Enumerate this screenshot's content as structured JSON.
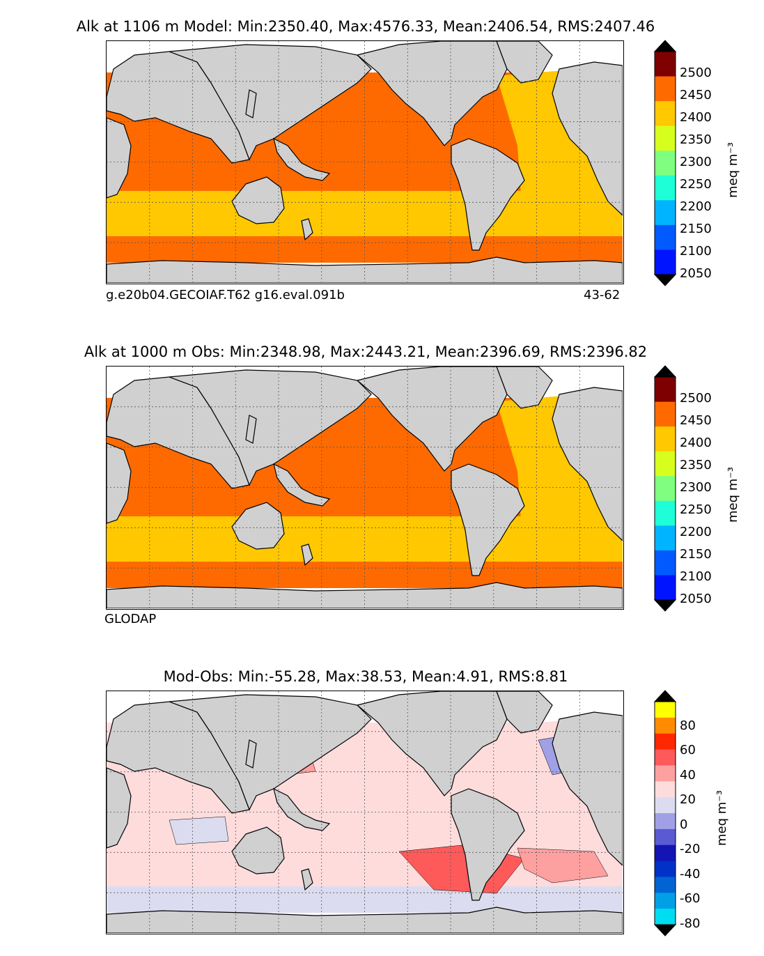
{
  "panels": [
    {
      "title": "Alk at 1106 m Model: Min:2350.40, Max:4576.33, Mean:2406.54, RMS:2407.46",
      "footnote_left": "g.e20b04.GECOIAF.T62 g16.eval.091b",
      "footnote_right": "43-62",
      "colorbar_unit": "meq m⁻³",
      "colorbar_ticks": [
        "2500",
        "2450",
        "2400",
        "2350",
        "2300",
        "2250",
        "2200",
        "2150",
        "2100",
        "2050"
      ],
      "colorbar_colors": [
        "#7f0000",
        "#ff1400",
        "#ff6a00",
        "#ffc800",
        "#d7ff1e",
        "#7fff7f",
        "#1effd7",
        "#00b4ff",
        "#005aff",
        "#0014ff",
        "#00007f"
      ],
      "map_fill": {
        "north": "#ff6a00",
        "south": "#ffc800",
        "atlantic": "#ffc800",
        "circumpolar": "#ff6a00"
      }
    },
    {
      "title": "Alk at 1000 m Obs: Min:2348.98, Max:2443.21, Mean:2396.69, RMS:2396.82",
      "footnote_left": "GLODAP",
      "footnote_right": "",
      "colorbar_unit": "meq m⁻³",
      "colorbar_ticks": [
        "2500",
        "2450",
        "2400",
        "2350",
        "2300",
        "2250",
        "2200",
        "2150",
        "2100",
        "2050"
      ],
      "colorbar_colors": [
        "#7f0000",
        "#ff1400",
        "#ff6a00",
        "#ffc800",
        "#d7ff1e",
        "#7fff7f",
        "#1effd7",
        "#00b4ff",
        "#005aff",
        "#0014ff",
        "#00007f"
      ],
      "map_fill": {
        "north": "#ff6a00",
        "south": "#ffc800",
        "atlantic": "#ffc800",
        "circumpolar": "#ff6a00"
      }
    },
    {
      "title": "Mod-Obs: Min:-55.28, Max:38.53, Mean:4.91, RMS:8.81",
      "footnote_left": "",
      "footnote_right": "",
      "colorbar_unit": "meq m⁻³",
      "colorbar_ticks": [
        "80",
        "60",
        "40",
        "20",
        "0",
        "-20",
        "-40",
        "-60",
        "-80"
      ],
      "colorbar_colors": [
        "#ffff00",
        "#ffc800",
        "#ff8c00",
        "#ff2800",
        "#ff5a5a",
        "#ffa0a0",
        "#ffdcdc",
        "#dcdcf0",
        "#a0a0e6",
        "#5a5ad2",
        "#1414b4",
        "#0032c8",
        "#0064d2",
        "#00a0e6",
        "#00dcf0",
        "#00ffff"
      ],
      "map_fill": {
        "north": "#ffdcdc",
        "south": "#ffdcdc",
        "atlantic": "#ffdcdc",
        "circumpolar": "#dcdcf0"
      }
    }
  ],
  "chart_data": [
    {
      "type": "heatmap",
      "title": "Alk at 1106 m Model: Min:2350.40, Max:4576.33, Mean:2406.54, RMS:2407.46",
      "variable": "Alk",
      "depth": "1106 m",
      "source": "Model",
      "stats": {
        "min": 2350.4,
        "max": 4576.33,
        "mean": 2406.54,
        "rms": 2407.46
      },
      "colorbar_levels": [
        2050,
        2100,
        2150,
        2200,
        2250,
        2300,
        2350,
        2400,
        2450,
        2500
      ],
      "colorbar_extend": "both",
      "units": "meq m⁻³",
      "grid": true
    },
    {
      "type": "heatmap",
      "title": "Alk at 1000 m Obs: Min:2348.98, Max:2443.21, Mean:2396.69, RMS:2396.82",
      "variable": "Alk",
      "depth": "1000 m",
      "source": "Obs",
      "stats": {
        "min": 2348.98,
        "max": 2443.21,
        "mean": 2396.69,
        "rms": 2396.82
      },
      "colorbar_levels": [
        2050,
        2100,
        2150,
        2200,
        2250,
        2300,
        2350,
        2400,
        2450,
        2500
      ],
      "colorbar_extend": "both",
      "units": "meq m⁻³",
      "grid": true
    },
    {
      "type": "heatmap",
      "title": "Mod-Obs: Min:-55.28, Max:38.53, Mean:4.91, RMS:8.81",
      "variable": "Mod-Obs",
      "stats": {
        "min": -55.28,
        "max": 38.53,
        "mean": 4.91,
        "rms": 8.81
      },
      "colorbar_levels": [
        -80,
        -60,
        -40,
        -20,
        0,
        20,
        40,
        60,
        80
      ],
      "colorbar_extend": "both",
      "units": "meq m⁻³",
      "grid": true
    }
  ]
}
